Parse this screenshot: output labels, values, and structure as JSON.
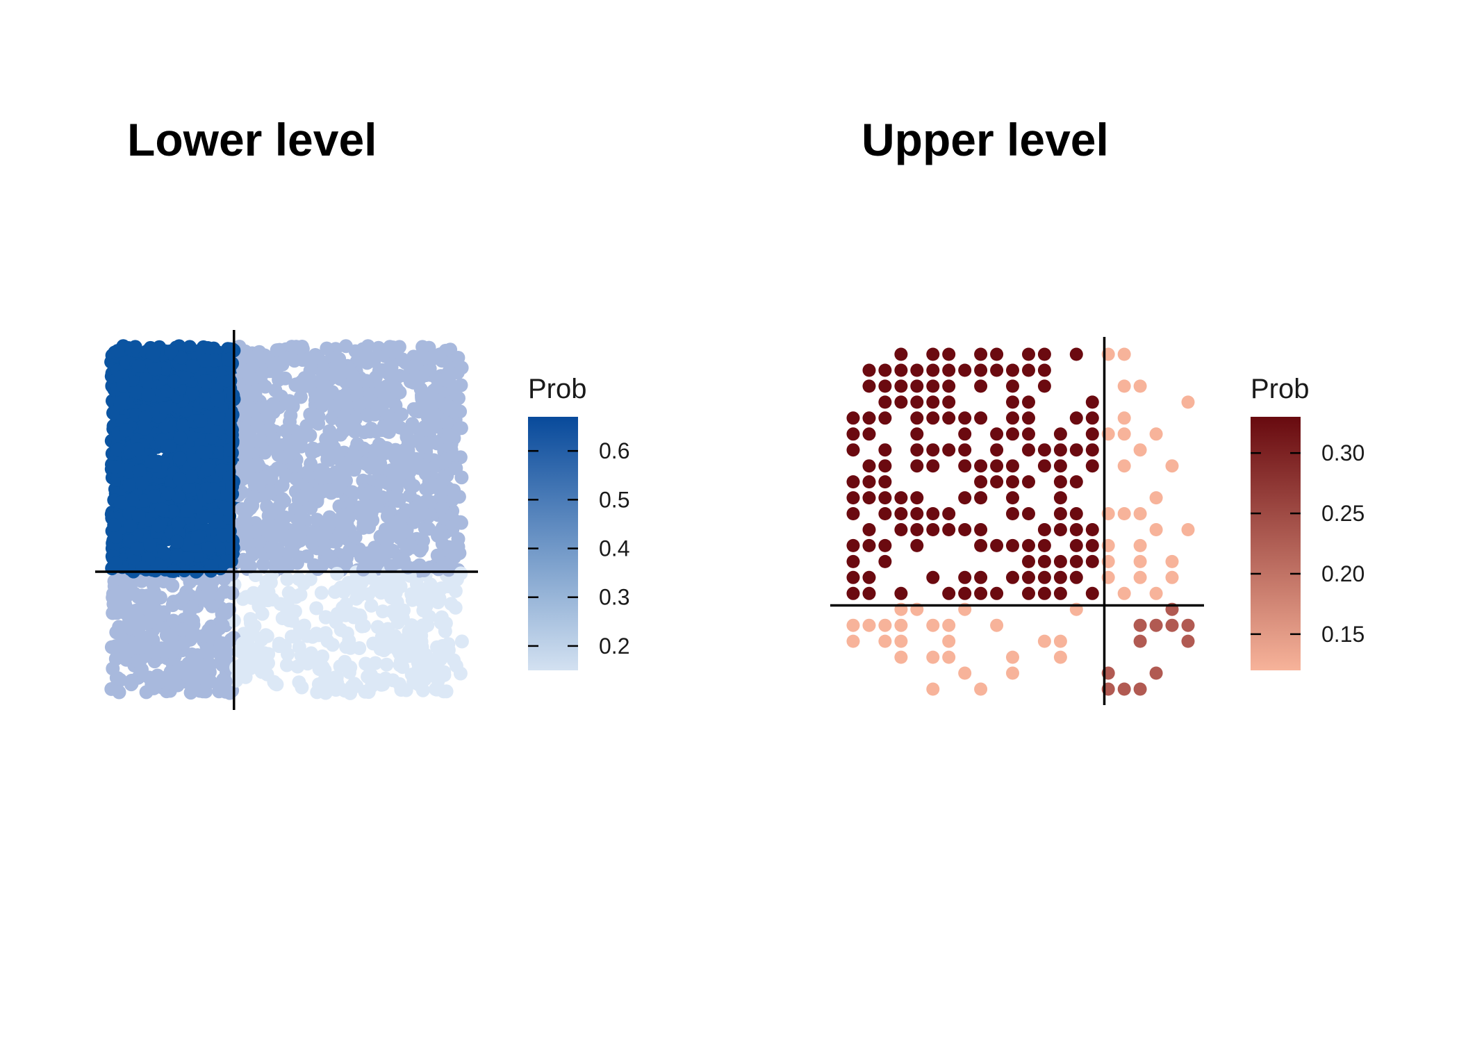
{
  "chart_data": [
    {
      "type": "scatter",
      "title": "Lower level",
      "xlabel": "",
      "ylabel": "",
      "grid": false,
      "legend_position": "right",
      "legend_title": "Prob",
      "color_scale": {
        "min": 0.15,
        "max": 0.67,
        "low_color": "#d3e1f1",
        "high_color": "#084a9b",
        "ticks": [
          0.2,
          0.3,
          0.4,
          0.5,
          0.6
        ],
        "tick_labels": [
          "0.2",
          "0.3",
          "0.4",
          "0.5",
          "0.6"
        ]
      },
      "threshold_lines": {
        "vertical": 0.35,
        "horizontal": 0.35
      },
      "regions": [
        {
          "quadrant": "upper-left",
          "prob": 0.66,
          "color": "#0b54a1"
        },
        {
          "quadrant": "upper-right",
          "prob": 0.33,
          "color": "#a8b9dd"
        },
        {
          "quadrant": "lower-left",
          "prob": 0.33,
          "color": "#a8b9dd"
        },
        {
          "quadrant": "lower-right",
          "prob": 0.17,
          "color": "#dce8f6"
        }
      ]
    },
    {
      "type": "scatter",
      "title": "Upper level",
      "xlabel": "",
      "ylabel": "",
      "grid": false,
      "legend_position": "right",
      "legend_title": "Prob",
      "color_scale": {
        "min": 0.12,
        "max": 0.33,
        "low_color": "#f7b39a",
        "high_color": "#680a0f",
        "ticks": [
          0.15,
          0.2,
          0.25,
          0.3
        ],
        "tick_labels": [
          "0.15",
          "0.20",
          "0.25",
          "0.30"
        ]
      },
      "threshold_lines": {
        "vertical": 0.75,
        "horizontal": 0.25
      },
      "regions": [
        {
          "quadrant": "upper-left",
          "prob": 0.33,
          "color": "#6b0a10"
        },
        {
          "quadrant": "upper-right",
          "prob": 0.12,
          "color": "#f7b39a"
        },
        {
          "quadrant": "lower-left",
          "prob": 0.12,
          "color": "#f7b39a"
        },
        {
          "quadrant": "lower-right",
          "prob": 0.22,
          "color": "#b15a52"
        }
      ]
    }
  ]
}
